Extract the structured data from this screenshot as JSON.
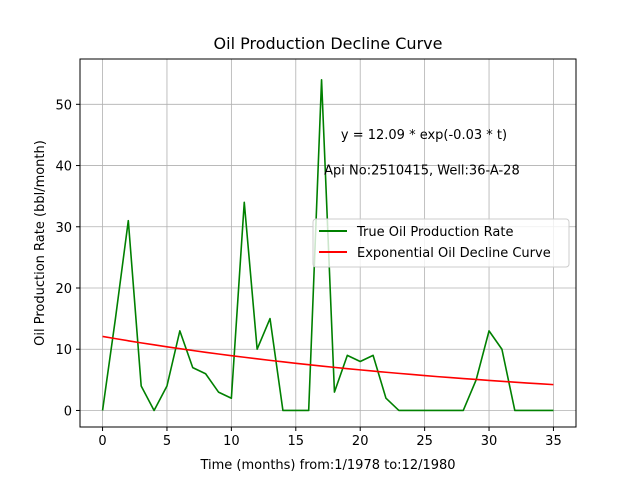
{
  "chart_data": {
    "type": "line",
    "title": "Oil Production Decline Curve",
    "xlabel": "Time (months) from:1/1978 to:12/1980",
    "ylabel": "Oil Production Rate (bbl/month)",
    "xlim": [
      -1.75,
      36.75
    ],
    "ylim": [
      -2.7,
      57.4
    ],
    "xticks": [
      0,
      5,
      10,
      15,
      20,
      25,
      30,
      35
    ],
    "yticks": [
      0,
      10,
      20,
      30,
      40,
      50
    ],
    "grid": true,
    "legend_position": "center-right",
    "annotations": [
      {
        "text": "y = 12.09 * exp(-0.03 * t)",
        "x": 18.5,
        "y": 44.3
      },
      {
        "text": "Api No:2510415, Well:36-A-28",
        "x": 17.2,
        "y": 38.5
      }
    ],
    "series": [
      {
        "name": "True Oil Production Rate",
        "color": "#008000",
        "x": [
          0,
          1,
          2,
          3,
          4,
          5,
          6,
          7,
          8,
          9,
          10,
          11,
          12,
          13,
          14,
          15,
          16,
          17,
          18,
          19,
          20,
          21,
          22,
          23,
          24,
          25,
          26,
          27,
          28,
          29,
          30,
          31,
          32,
          33,
          34,
          35
        ],
        "values": [
          0,
          15,
          31,
          4,
          0,
          4,
          13,
          7,
          6,
          3,
          2,
          34,
          10,
          15,
          0,
          0,
          0,
          54,
          3,
          9,
          8,
          9,
          2,
          0,
          0,
          0,
          0,
          0,
          0,
          5,
          13,
          10,
          0,
          0,
          0,
          0
        ]
      },
      {
        "name": "Exponential Oil Decline Curve",
        "color": "#ff0000",
        "x": [
          0,
          1,
          2,
          3,
          4,
          5,
          6,
          7,
          8,
          9,
          10,
          11,
          12,
          13,
          14,
          15,
          16,
          17,
          18,
          19,
          20,
          21,
          22,
          23,
          24,
          25,
          26,
          27,
          28,
          29,
          30,
          31,
          32,
          33,
          34,
          35
        ],
        "values": [
          12.09,
          11.73,
          11.38,
          11.04,
          10.72,
          10.4,
          10.09,
          9.79,
          9.5,
          9.22,
          8.95,
          8.69,
          8.43,
          8.18,
          7.94,
          7.7,
          7.48,
          7.25,
          7.04,
          6.83,
          6.63,
          6.43,
          6.24,
          6.06,
          5.88,
          5.7,
          5.53,
          5.37,
          5.21,
          5.06,
          4.91,
          4.76,
          4.62,
          4.48,
          4.35,
          4.22
        ]
      }
    ]
  }
}
